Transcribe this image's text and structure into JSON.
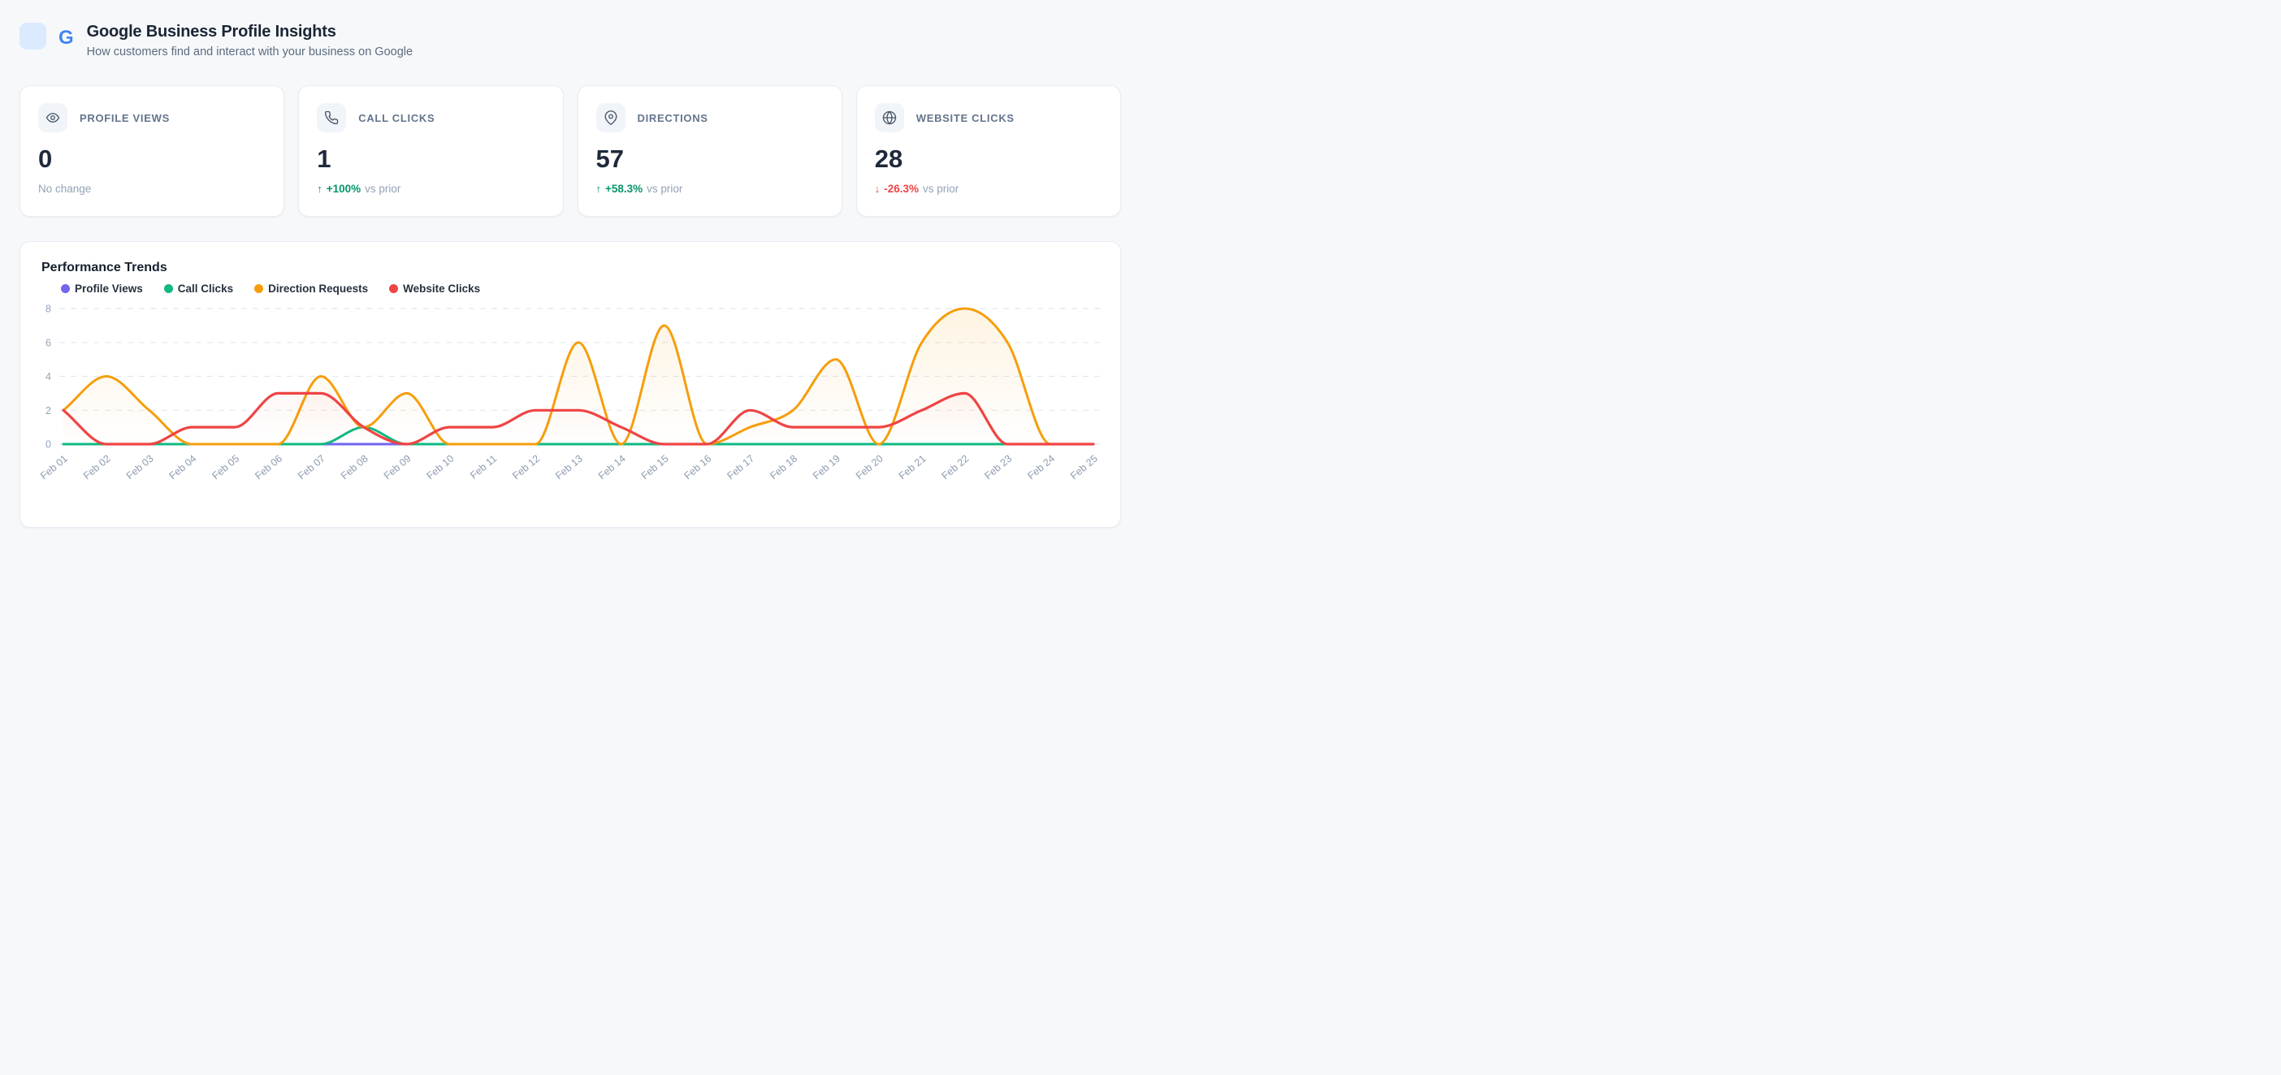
{
  "header": {
    "logo_letter": "G",
    "title": "Google Business Profile Insights",
    "subtitle": "How customers find and interact with your business on Google"
  },
  "stats": [
    {
      "id": "profile-views",
      "label": "PROFILE VIEWS",
      "icon": "eye-icon",
      "value": "0",
      "note": "No change"
    },
    {
      "id": "call-clicks",
      "label": "CALL CLICKS",
      "icon": "phone-icon",
      "value": "1",
      "arrow": "↑",
      "delta": "+100%",
      "trend": "up",
      "suffix": "vs prior"
    },
    {
      "id": "directions",
      "label": "DIRECTIONS",
      "icon": "map-pin-icon",
      "value": "57",
      "arrow": "↑",
      "delta": "+58.3%",
      "trend": "up",
      "suffix": "vs prior"
    },
    {
      "id": "website-clicks",
      "label": "WEBSITE CLICKS",
      "icon": "globe-icon",
      "value": "28",
      "arrow": "↓",
      "delta": "-26.3%",
      "trend": "down",
      "suffix": "vs prior"
    }
  ],
  "chart": {
    "title": "Performance Trends"
  },
  "chart_data": {
    "type": "line",
    "title": "Performance Trends",
    "x": [
      "Feb 01",
      "Feb 02",
      "Feb 03",
      "Feb 04",
      "Feb 05",
      "Feb 06",
      "Feb 07",
      "Feb 08",
      "Feb 09",
      "Feb 10",
      "Feb 11",
      "Feb 12",
      "Feb 13",
      "Feb 14",
      "Feb 15",
      "Feb 16",
      "Feb 17",
      "Feb 18",
      "Feb 19",
      "Feb 20",
      "Feb 21",
      "Feb 22",
      "Feb 23",
      "Feb 24",
      "Feb 25"
    ],
    "series": [
      {
        "name": "Profile Views",
        "color": "#7066f0",
        "values": [
          0,
          0,
          0,
          0,
          0,
          0,
          0,
          0,
          0,
          0,
          0,
          0,
          0,
          0,
          0,
          0,
          0,
          0,
          0,
          0,
          0,
          0,
          0,
          0,
          0
        ]
      },
      {
        "name": "Call Clicks",
        "color": "#10b981",
        "values": [
          0,
          0,
          0,
          0,
          0,
          0,
          0,
          1,
          0,
          0,
          0,
          0,
          0,
          0,
          0,
          0,
          0,
          0,
          0,
          0,
          0,
          0,
          0,
          0,
          0
        ]
      },
      {
        "name": "Direction Requests",
        "color": "#f59e0b",
        "values": [
          2,
          4,
          2,
          0,
          0,
          0,
          4,
          1,
          3,
          0,
          0,
          0,
          6,
          0,
          7,
          0,
          1,
          2,
          5,
          0,
          6,
          8,
          6,
          0,
          0
        ]
      },
      {
        "name": "Website Clicks",
        "color": "#ef4444",
        "values": [
          2,
          0,
          0,
          1,
          1,
          3,
          3,
          1,
          0,
          1,
          1,
          2,
          2,
          1,
          0,
          0,
          2,
          1,
          1,
          1,
          2,
          3,
          0,
          0,
          0
        ]
      }
    ],
    "ylim": [
      0,
      8
    ],
    "yticks": [
      0,
      2,
      4,
      6,
      8
    ],
    "grid": "horizontal-dashed",
    "legend_position": "top-left",
    "x_tick_rotation": -40,
    "smoothing": "monotone-cubic"
  },
  "colors": {
    "page_bg": "#f6f8fa",
    "card_bg": "#ffffff",
    "card_border": "#e8edf3",
    "logo_badge_bg": "#dbeafe",
    "google_blue": "#4285f4",
    "icon_badge_bg": "#f1f5f9",
    "icon_stroke": "#475569",
    "heading_text": "#1e293b",
    "muted_text": "#64748b",
    "faint_text": "#94a3b8",
    "axis_tick_text": "#8d9bb0",
    "gridline": "#e2e8f0",
    "trend_up": "#059669",
    "trend_down": "#ef4444"
  }
}
